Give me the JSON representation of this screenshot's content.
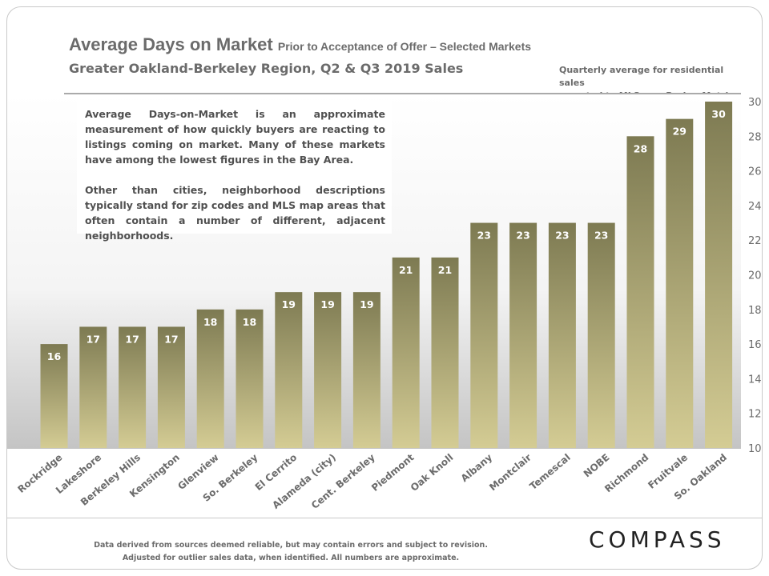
{
  "header": {
    "title": "Average Days on Market",
    "title_suffix": "Prior to Acceptance of Offer – Selected Markets",
    "subtitle": "Greater Oakland-Berkeley  Region, Q2 & Q3 2019 Sales",
    "note_line1": "Quarterly average for residential  sales",
    "note_line2": "reported to MLS, per Broker Metrics"
  },
  "textbox": {
    "para1": "Average Days-on-Market is an approximate measurement of how quickly buyers are reacting to listings coming on market. Many of these markets have among the lowest figures in the Bay Area.",
    "para2": "Other than cities, neighborhood descriptions typically stand for zip codes and MLS map areas that often contain a number of different, adjacent neighborhoods."
  },
  "footer": {
    "disclaimer": "Data derived from sources deemed reliable, but may contain errors and subject to revision. Adjusted for outlier sales data, when identified. All numbers are approximate.",
    "logo": "COMPASS"
  },
  "colors": {
    "bar_top": "#7d7a52",
    "bar_bottom": "#d4cc94",
    "text": "#6b6b6b"
  },
  "chart_data": {
    "type": "bar",
    "categories": [
      "Rockridge",
      "Lakeshore",
      "Berkeley Hills",
      "Kensington",
      "Glenview",
      "So. Berkeley",
      "El Cerrito",
      "Alameda (city)",
      "Cent. Berkeley",
      "Piedmont",
      "Oak Knoll",
      "Albany",
      "Montclair",
      "Temescal",
      "NOBE",
      "Richmond",
      "Fruitvale",
      "So. Oakland"
    ],
    "values": [
      16,
      17,
      17,
      17,
      18,
      18,
      19,
      19,
      19,
      21,
      21,
      23,
      23,
      23,
      23,
      28,
      29,
      30
    ],
    "ylim": [
      10,
      30
    ],
    "yticks": [
      10,
      12,
      14,
      16,
      18,
      20,
      22,
      24,
      26,
      28,
      30
    ],
    "y_axis_side": "right",
    "data_labels": true,
    "grid": false
  }
}
